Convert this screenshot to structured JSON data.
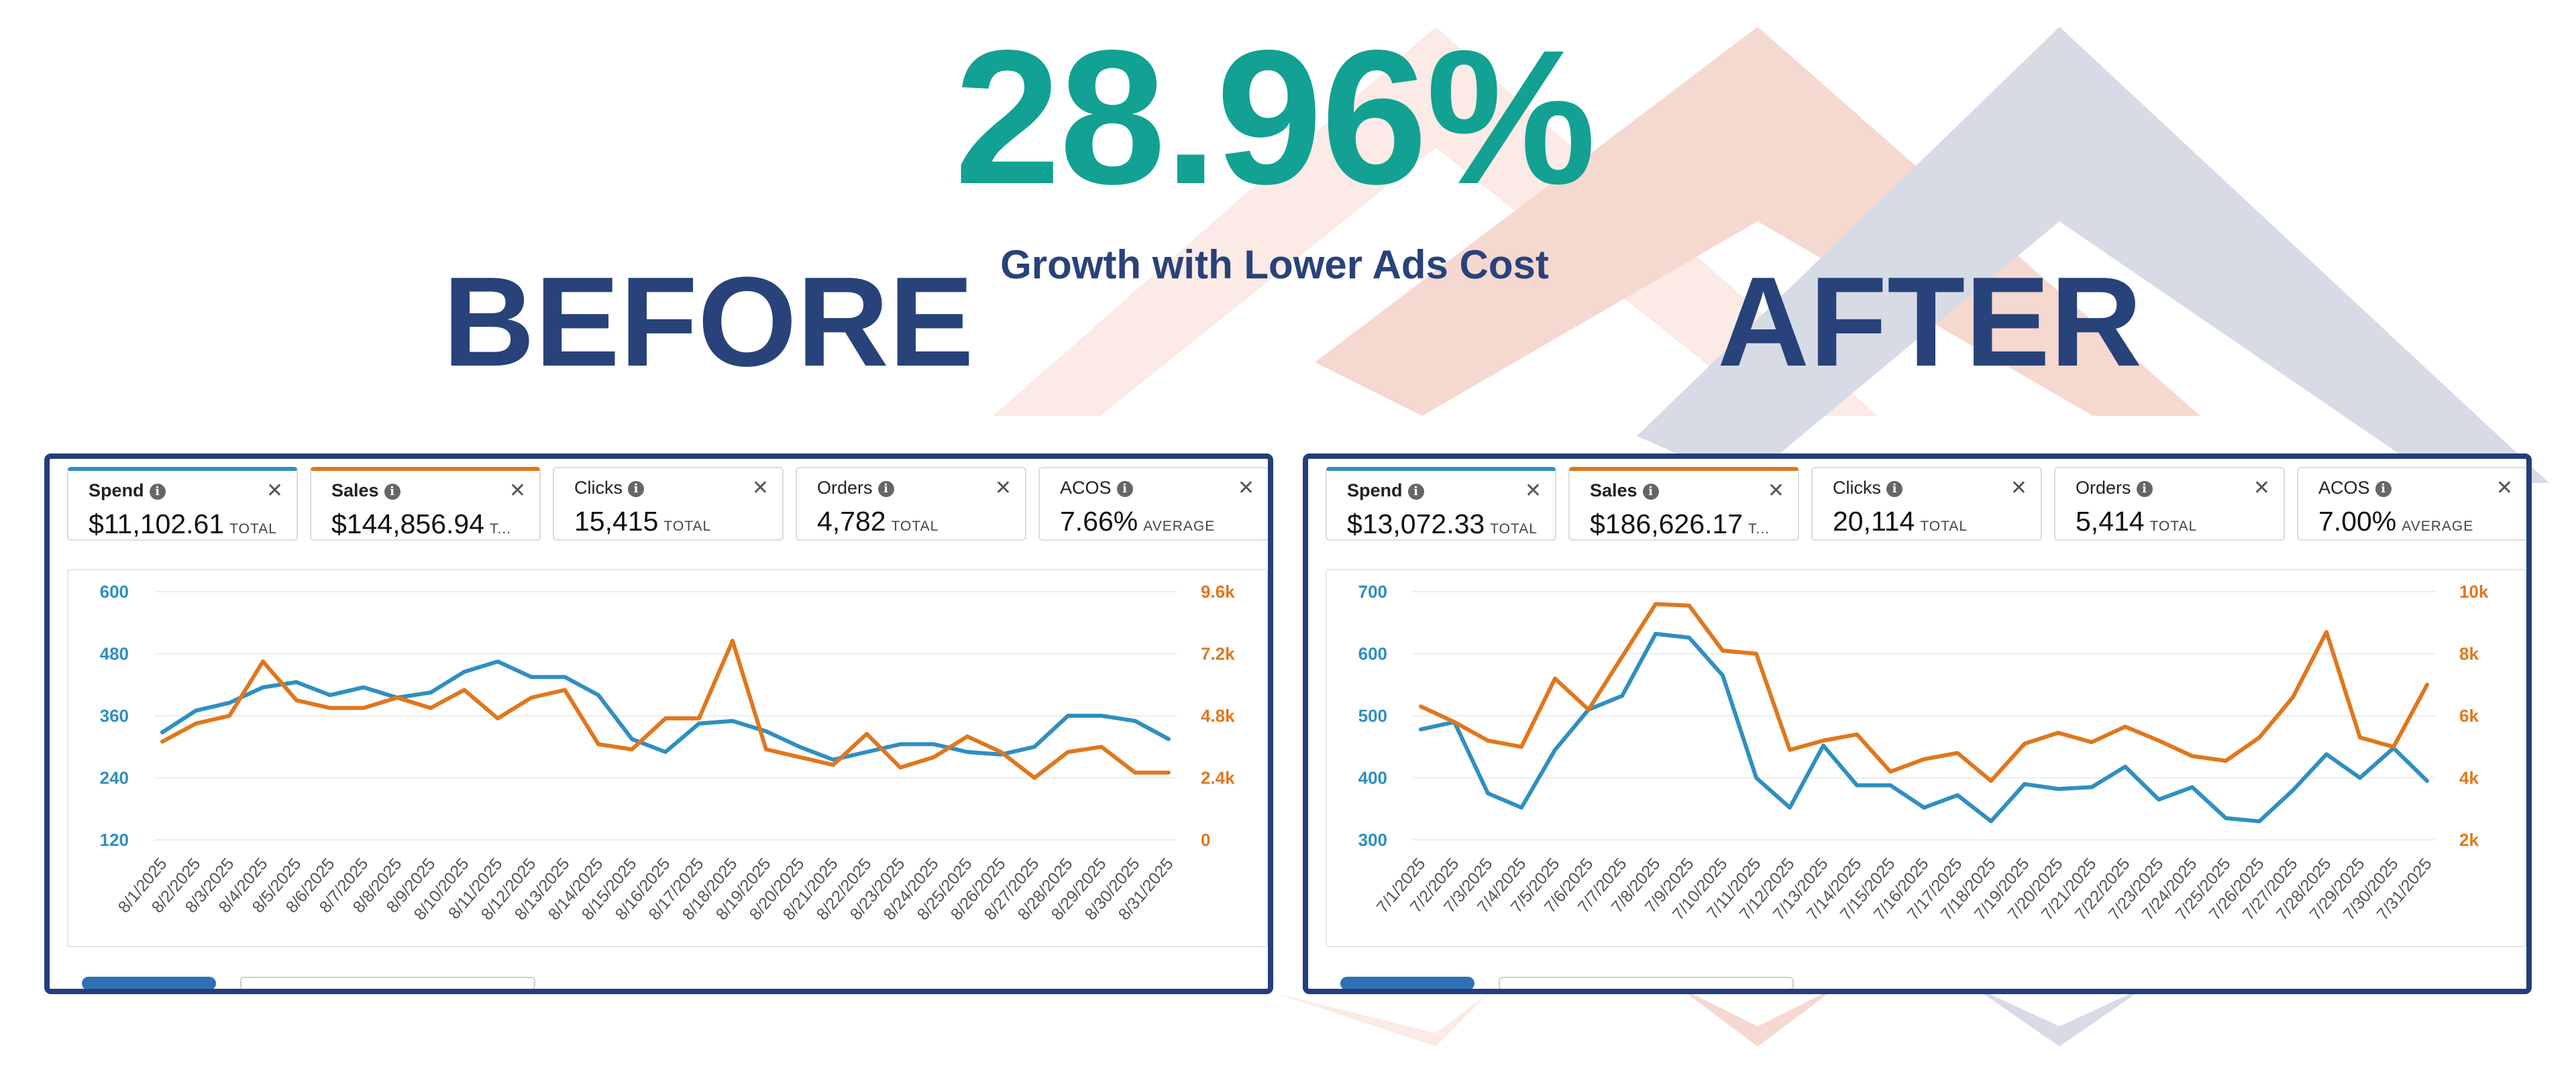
{
  "headline": "28.96%",
  "subheadline": "Growth with Lower Ads Cost",
  "before_label": "BEFORE",
  "after_label": "AFTER",
  "colors": {
    "headline": "#12a193",
    "navy": "#28427a",
    "spend_line": "#2f8fc1",
    "sales_line": "#e0771d"
  },
  "before": {
    "metrics": [
      {
        "name": "Spend",
        "value": "$11,102.61",
        "suffix": "TOTAL"
      },
      {
        "name": "Sales",
        "value": "$144,856.94",
        "suffix": "T..."
      },
      {
        "name": "Clicks",
        "value": "15,415",
        "suffix": "TOTAL"
      },
      {
        "name": "Orders",
        "value": "4,782",
        "suffix": "TOTAL"
      },
      {
        "name": "ACOS",
        "value": "7.66%",
        "suffix": "AVERAGE"
      }
    ]
  },
  "after": {
    "metrics": [
      {
        "name": "Spend",
        "value": "$13,072.33",
        "suffix": "TOTAL"
      },
      {
        "name": "Sales",
        "value": "$186,626.17",
        "suffix": "T..."
      },
      {
        "name": "Clicks",
        "value": "20,114",
        "suffix": "TOTAL"
      },
      {
        "name": "Orders",
        "value": "5,414",
        "suffix": "TOTAL"
      },
      {
        "name": "ACOS",
        "value": "7.00%",
        "suffix": "AVERAGE"
      }
    ]
  },
  "chart_data": [
    {
      "type": "line",
      "title": "BEFORE",
      "x": [
        "8/1/2025",
        "8/2/2025",
        "8/3/2025",
        "8/4/2025",
        "8/5/2025",
        "8/6/2025",
        "8/7/2025",
        "8/8/2025",
        "8/9/2025",
        "8/10/2025",
        "8/11/2025",
        "8/12/2025",
        "8/13/2025",
        "8/14/2025",
        "8/15/2025",
        "8/16/2025",
        "8/17/2025",
        "8/18/2025",
        "8/19/2025",
        "8/20/2025",
        "8/21/2025",
        "8/22/2025",
        "8/23/2025",
        "8/24/2025",
        "8/25/2025",
        "8/26/2025",
        "8/27/2025",
        "8/28/2025",
        "8/29/2025",
        "8/30/2025",
        "8/31/2025"
      ],
      "series": [
        {
          "name": "Spend",
          "axis": "left",
          "values": [
            328,
            370,
            385,
            415,
            425,
            400,
            415,
            395,
            405,
            445,
            465,
            435,
            435,
            400,
            315,
            290,
            345,
            350,
            330,
            300,
            275,
            290,
            305,
            305,
            290,
            285,
            300,
            360,
            360,
            350,
            315
          ]
        },
        {
          "name": "Sales",
          "axis": "right",
          "values": [
            3800,
            4500,
            4800,
            6900,
            5400,
            5100,
            5100,
            5500,
            5100,
            5800,
            4700,
            5500,
            5800,
            3700,
            3500,
            4700,
            4700,
            7700,
            3500,
            3200,
            2900,
            4100,
            2800,
            3200,
            4000,
            3400,
            2400,
            3400,
            3600,
            2600,
            2600
          ]
        }
      ],
      "y_left": {
        "ticks": [
          120,
          240,
          360,
          480,
          600
        ],
        "ylim": [
          120,
          600
        ]
      },
      "y_right": {
        "ticks": [
          "0",
          "2.4k",
          "4.8k",
          "7.2k",
          "9.6k"
        ],
        "ylim": [
          0,
          9600
        ]
      }
    },
    {
      "type": "line",
      "title": "AFTER",
      "x": [
        "7/1/2025",
        "7/2/2025",
        "7/3/2025",
        "7/4/2025",
        "7/5/2025",
        "7/6/2025",
        "7/7/2025",
        "7/8/2025",
        "7/9/2025",
        "7/10/2025",
        "7/11/2025",
        "7/12/2025",
        "7/13/2025",
        "7/14/2025",
        "7/15/2025",
        "7/16/2025",
        "7/17/2025",
        "7/18/2025",
        "7/19/2025",
        "7/20/2025",
        "7/21/2025",
        "7/22/2025",
        "7/23/2025",
        "7/24/2025",
        "7/25/2025",
        "7/26/2025",
        "7/27/2025",
        "7/28/2025",
        "7/29/2025",
        "7/30/2025",
        "7/31/2025"
      ],
      "series": [
        {
          "name": "Spend",
          "axis": "left",
          "values": [
            478,
            490,
            375,
            352,
            445,
            510,
            532,
            632,
            626,
            565,
            400,
            352,
            452,
            388,
            388,
            352,
            372,
            330,
            390,
            382,
            385,
            418,
            365,
            385,
            335,
            330,
            380,
            438,
            400,
            448,
            395
          ]
        },
        {
          "name": "Sales",
          "axis": "right",
          "values": [
            6300,
            5800,
            5200,
            5000,
            7200,
            6200,
            7900,
            9600,
            9550,
            8100,
            8000,
            4900,
            5200,
            5400,
            4200,
            4600,
            4800,
            3900,
            5100,
            5450,
            5150,
            5650,
            5200,
            4700,
            4550,
            5300,
            6600,
            8700,
            5300,
            5000,
            7000
          ]
        }
      ],
      "y_left": {
        "ticks": [
          300,
          400,
          500,
          600,
          700
        ],
        "ylim": [
          300,
          700
        ]
      },
      "y_right": {
        "ticks": [
          "2k",
          "4k",
          "6k",
          "8k",
          "10k"
        ],
        "ylim": [
          2000,
          10000
        ]
      }
    }
  ]
}
